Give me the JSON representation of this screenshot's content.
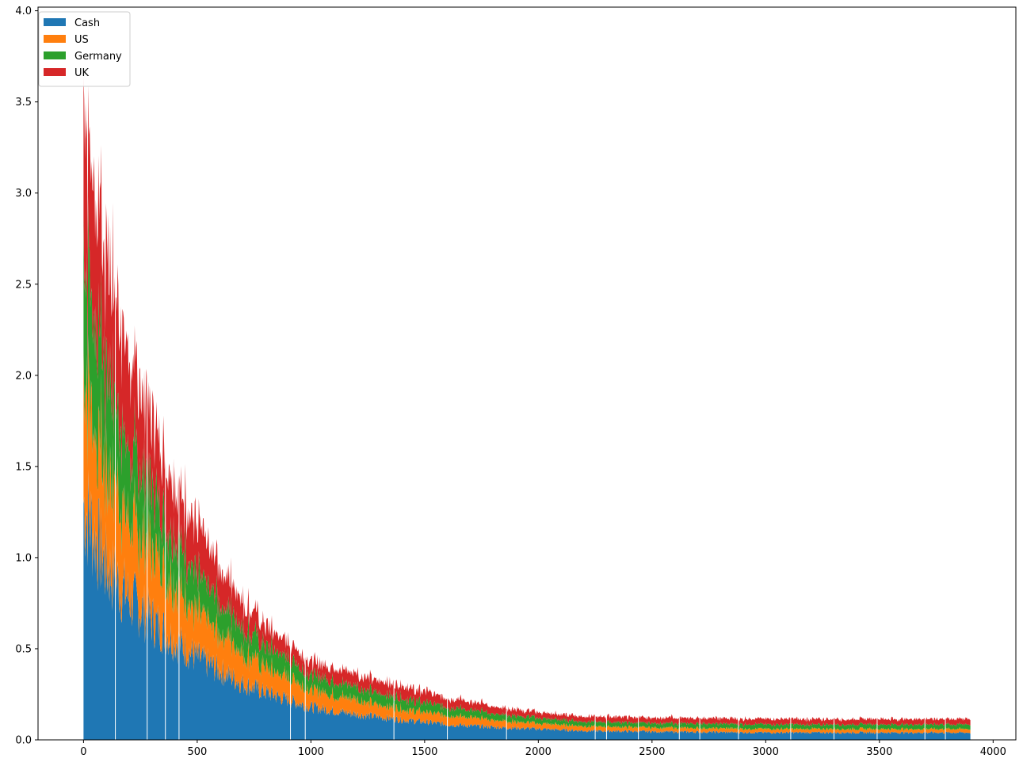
{
  "chart_data": {
    "type": "area",
    "stacked": true,
    "title": "",
    "xlabel": "",
    "ylabel": "",
    "xlim": [
      -200,
      4100
    ],
    "ylim": [
      0.0,
      4.02
    ],
    "x_range": [
      0,
      3900
    ],
    "x_ticks": [
      0,
      500,
      1000,
      1500,
      2000,
      2500,
      3000,
      3500,
      4000
    ],
    "y_ticks": [
      0.0,
      0.5,
      1.0,
      1.5,
      2.0,
      2.5,
      3.0,
      3.5,
      4.0
    ],
    "x_tick_labels": [
      "0",
      "500",
      "1000",
      "1500",
      "2000",
      "2500",
      "3000",
      "3500",
      "4000"
    ],
    "y_tick_labels": [
      "0.0",
      "0.5",
      "1.0",
      "1.5",
      "2.0",
      "2.5",
      "3.0",
      "3.5",
      "4.0"
    ],
    "grid": false,
    "legend_position": "top-left",
    "x": [
      0,
      100,
      200,
      300,
      400,
      500,
      600,
      700,
      800,
      900,
      1000,
      1200,
      1400,
      1600,
      1800,
      2000,
      2200,
      2500,
      3000,
      3500,
      3900
    ],
    "series": [
      {
        "name": "Cash",
        "color": "#1f77b4",
        "values": [
          1.3,
          0.95,
          0.78,
          0.66,
          0.55,
          0.45,
          0.38,
          0.31,
          0.26,
          0.22,
          0.18,
          0.14,
          0.11,
          0.085,
          0.07,
          0.06,
          0.05,
          0.045,
          0.04,
          0.04,
          0.04
        ]
      },
      {
        "name": "US",
        "color": "#ff7f0e",
        "values": [
          0.7,
          0.55,
          0.45,
          0.38,
          0.31,
          0.25,
          0.21,
          0.17,
          0.14,
          0.12,
          0.1,
          0.08,
          0.06,
          0.05,
          0.04,
          0.03,
          0.025,
          0.022,
          0.02,
          0.02,
          0.02
        ]
      },
      {
        "name": "Germany",
        "color": "#2ca02c",
        "values": [
          0.65,
          0.5,
          0.4,
          0.32,
          0.26,
          0.21,
          0.17,
          0.14,
          0.12,
          0.1,
          0.08,
          0.07,
          0.06,
          0.045,
          0.035,
          0.03,
          0.025,
          0.025,
          0.025,
          0.025,
          0.025
        ]
      },
      {
        "name": "UK",
        "color": "#d62728",
        "values": [
          0.85,
          0.65,
          0.5,
          0.4,
          0.31,
          0.26,
          0.2,
          0.15,
          0.11,
          0.09,
          0.08,
          0.07,
          0.07,
          0.05,
          0.04,
          0.03,
          0.03,
          0.03,
          0.03,
          0.03,
          0.03
        ]
      }
    ]
  }
}
